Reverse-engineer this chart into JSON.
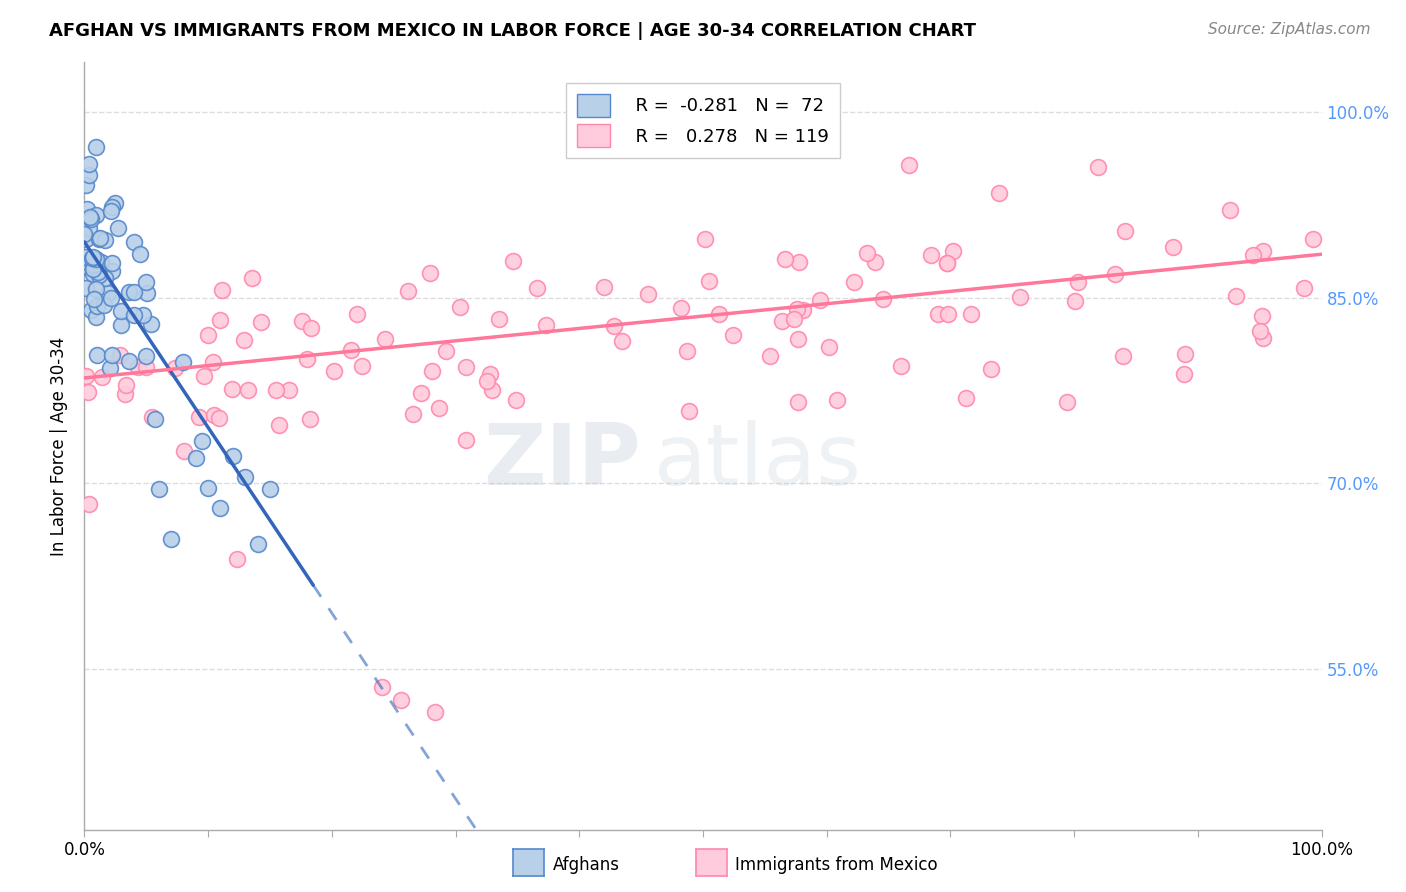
{
  "title": "AFGHAN VS IMMIGRANTS FROM MEXICO IN LABOR FORCE | AGE 30-34 CORRELATION CHART",
  "source": "Source: ZipAtlas.com",
  "ylabel": "In Labor Force | Age 30-34",
  "legend_r_afghan": "-0.281",
  "legend_n_afghan": "72",
  "legend_r_mexico": "0.278",
  "legend_n_mexico": "119",
  "afghan_color": "#b8d0e8",
  "afghan_edge": "#5588cc",
  "mexico_color": "#ffccdd",
  "mexico_edge": "#ff88aa",
  "afghan_trend_color": "#3366bb",
  "mexico_trend_color": "#ff7799",
  "watermark_color": "#ccddeebb",
  "background_color": "#ffffff",
  "y_ticks": [
    0.55,
    0.7,
    0.85,
    1.0
  ],
  "y_tick_labels": [
    "55.0%",
    "70.0%",
    "85.0%",
    "100.0%"
  ],
  "ylim_min": 0.42,
  "ylim_max": 1.04,
  "xlim_min": 0.0,
  "xlim_max": 1.0,
  "title_fontsize": 13,
  "source_fontsize": 11,
  "tick_fontsize": 12,
  "ylabel_fontsize": 12
}
